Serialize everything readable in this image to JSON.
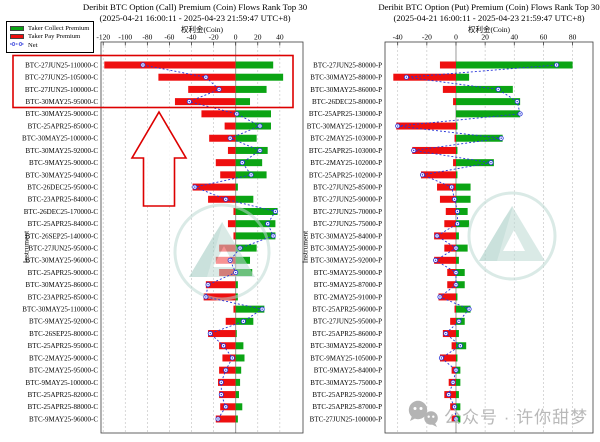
{
  "page_title": "Deribit BTC Option Premium (Coin) Flows Rank Top 30",
  "legend": {
    "items": [
      {
        "label": "Taker Collect Premium",
        "color": "#0ba414",
        "type": "swatch"
      },
      {
        "label": "Taker Pay Premium",
        "color": "#ee0f0f",
        "type": "swatch"
      },
      {
        "label": "Net",
        "color": "#2633d9",
        "type": "line"
      }
    ]
  },
  "watermark": {
    "text": "公众号 · 许你甜梦",
    "icon": "wechat-icon",
    "color": "#b9b9b9"
  },
  "logo_watermark": {
    "name": "greeks-triangle-logo",
    "main_color": "#bcd9d3",
    "accent_color": "#9fc9c0"
  },
  "colors": {
    "collect_green": "#0ba414",
    "pay_red": "#ee0f0f",
    "net_blue": "#2633d9",
    "grid": "#c8c8c8",
    "zero_line": "#9a9a9a",
    "box": "#3c3c3c",
    "annotation_red": "#dd0000"
  },
  "chart_data": [
    {
      "type": "bar",
      "orientation": "horizontal",
      "title": "Deribit BTC Option (Call) Premium (Coin) Flows Rank Top 30",
      "subtitle": "(2025-04-21 16:00:11 - 2025-04-23 21:59:47 UTC+8)",
      "xlabel": "权利金(Coin)",
      "ylabel": "Instrument",
      "xticks": [
        -120,
        -100,
        -80,
        -60,
        -40,
        -20,
        0,
        20,
        40
      ],
      "xlim": [
        -122,
        61
      ],
      "grid": true,
      "categories": [
        "BTC-27JUN25-110000-C",
        "BTC-27JUN25-105000-C",
        "BTC-27JUN25-100000-C",
        "BTC-30MAY25-95000-C",
        "BTC-30MAY25-90000-C",
        "BTC-25APR25-85000-C",
        "BTC-30MAY25-100000-C",
        "BTC-30MAY25-92000-C",
        "BTC-9MAY25-90000-C",
        "BTC-30MAY25-94000-C",
        "BTC-26DEC25-95000-C",
        "BTC-23APR25-84000-C",
        "BTC-26DEC25-170000-C",
        "BTC-25APR25-84000-C",
        "BTC-26SEP25-140000-C",
        "BTC-27JUN25-95000-C",
        "BTC-30MAY25-96000-C",
        "BTC-25APR25-90000-C",
        "BTC-30MAY25-86000-C",
        "BTC-23APR25-85000-C",
        "BTC-30MAY25-110000-C",
        "BTC-9MAY25-92000-C",
        "BTC-26SEP25-80000-C",
        "BTC-25APR25-95000-C",
        "BTC-2MAY25-90000-C",
        "BTC-2MAY25-95000-C",
        "BTC-9MAY25-100000-C",
        "BTC-25APR25-82000-C",
        "BTC-25APR25-88000-C",
        "BTC-9MAY25-96000-C"
      ],
      "series": [
        {
          "name": "Taker Collect Premium",
          "values": [
            34,
            43,
            28,
            13,
            32,
            32,
            19,
            29,
            24,
            28,
            2,
            16,
            38,
            36,
            36,
            19,
            13,
            15,
            2,
            2,
            26,
            16,
            1,
            7,
            8,
            5,
            4,
            3,
            6,
            2
          ]
        },
        {
          "name": "Taker Pay Premium",
          "values": [
            -119,
            -70,
            -43,
            -55,
            -31,
            -10,
            -24,
            -7,
            -18,
            -14,
            -39,
            -25,
            -2,
            -7,
            -2,
            -15,
            -18,
            -15,
            -27,
            -29,
            -2,
            -9,
            -25,
            -15,
            -12,
            -15,
            -16,
            -15,
            -14,
            -18
          ]
        },
        {
          "name": "Net",
          "values": [
            -84,
            -27,
            -15,
            -42,
            1,
            22,
            -5,
            22,
            6,
            14,
            -37,
            -9,
            36,
            29,
            34,
            4,
            -5,
            0,
            -25,
            -27,
            24,
            7,
            -23,
            -11,
            -3,
            -9,
            -13,
            -13,
            -9,
            -16
          ]
        }
      ],
      "annotations": {
        "highlight_box_rows": [
          1,
          4
        ],
        "arrow": "red up arrow below highlighted rows"
      }
    },
    {
      "type": "bar",
      "orientation": "horizontal",
      "title": "Deribit BTC Option (Put) Premium (Coin) Flows Rank Top 30",
      "subtitle": "(2025-04-21 16:00:11 - 2025-04-23 21:59:47 UTC+8)",
      "xlabel": "权利金(Coin)",
      "ylabel": "Instrument",
      "xticks": [
        -40,
        -20,
        0,
        20,
        40,
        60,
        80
      ],
      "xlim": [
        -48.7,
        94
      ],
      "grid": true,
      "categories": [
        "BTC-27JUN25-80000-P",
        "BTC-30MAY25-88000-P",
        "BTC-30MAY25-86000-P",
        "BTC-26DEC25-80000-P",
        "BTC-25APR25-130000-P",
        "BTC-30MAY25-120000-P",
        "BTC-2MAY25-103000-P",
        "BTC-25APR25-103000-P",
        "BTC-2MAY25-102000-P",
        "BTC-25APR25-102000-P",
        "BTC-27JUN25-85000-P",
        "BTC-27JUN25-90000-P",
        "BTC-27JUN25-70000-P",
        "BTC-27JUN25-75000-P",
        "BTC-30MAY25-84000-P",
        "BTC-30MAY25-90000-P",
        "BTC-30MAY25-92000-P",
        "BTC-9MAY25-90000-P",
        "BTC-9MAY25-87000-P",
        "BTC-2MAY25-91000-P",
        "BTC-25APR25-96000-P",
        "BTC-27JUN25-95000-P",
        "BTC-25APR25-86000-P",
        "BTC-30MAY25-82000-P",
        "BTC-9MAY25-105000-P",
        "BTC-9MAY25-84000-P",
        "BTC-30MAY25-75000-P",
        "BTC-25APR25-92000-P",
        "BTC-25APR25-87000-P",
        "BTC-27JUN25-100000-P"
      ],
      "series": [
        {
          "name": "Taker Collect Premium",
          "values": [
            80,
            9,
            39,
            44,
            44,
            1,
            32,
            1,
            26,
            1,
            10,
            10,
            8,
            9,
            2,
            8,
            2,
            6,
            6,
            1,
            10,
            6,
            2,
            7,
            1,
            3,
            3,
            2,
            3,
            3
          ]
        },
        {
          "name": "Taker Pay Premium",
          "values": [
            -11,
            -43,
            -9,
            -2,
            0,
            -41,
            -1,
            -30,
            -2,
            -24,
            -13,
            -11,
            -7,
            -8,
            -15,
            -8,
            -15,
            -6,
            -6,
            -12,
            -1,
            -4,
            -9,
            -3,
            -11,
            -3,
            -5,
            -8,
            -4,
            -3
          ]
        },
        {
          "name": "Net",
          "values": [
            69,
            -34,
            29,
            42,
            44,
            -40,
            31,
            -29,
            24,
            -23,
            -3,
            -1,
            1,
            1,
            -13,
            0,
            -14,
            0,
            0,
            -11,
            9,
            2,
            -7,
            3,
            -10,
            0,
            -2,
            -5,
            -1,
            0
          ]
        }
      ],
      "annotations": {}
    }
  ]
}
